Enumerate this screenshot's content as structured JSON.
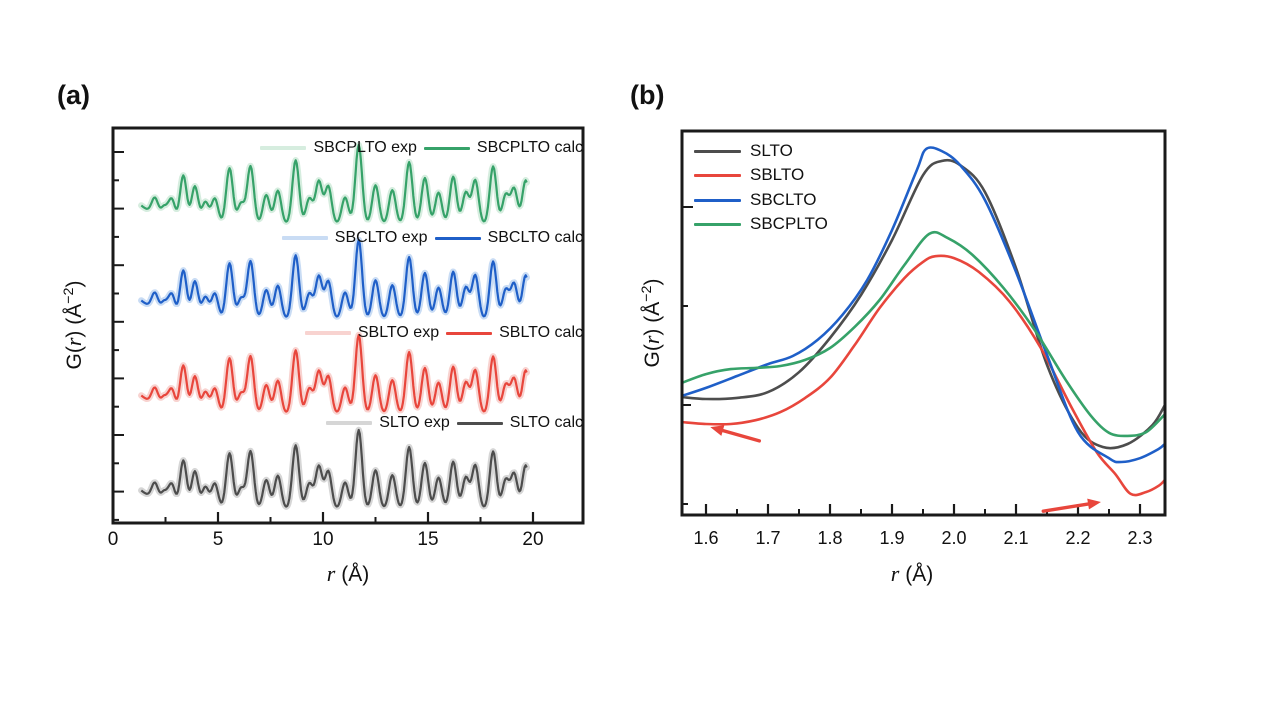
{
  "figure_bg": "#ffffff",
  "axis_color": "#1a1a1a",
  "panel_a": {
    "tag": "(a)",
    "x_tick_labels": [
      "0",
      "5",
      "10",
      "15",
      "20"
    ],
    "xlabel": {
      "italic": "r",
      "rest": " (Å)"
    },
    "ylabel": {
      "p1": "G(",
      "italic": "r",
      "p2": ") (Å",
      "sup": "−2",
      "p3": ")"
    },
    "legend_rows": [
      {
        "exp_label": "SBCPLTO exp",
        "calc_label": "SBCPLTO calc",
        "color": "#36a269",
        "pale": "#d6eddf"
      },
      {
        "exp_label": "SBCLTO exp",
        "calc_label": "SBCLTO calc",
        "color": "#1f5fc8",
        "pale": "#c9dcf4"
      },
      {
        "exp_label": "SBLTO exp",
        "calc_label": "SBLTO calc",
        "color": "#e8463c",
        "pale": "#f8d3d0"
      },
      {
        "exp_label": "SLTO exp",
        "calc_label": "SLTO calc",
        "color": "#4d4d4d",
        "pale": "#d6d6d6"
      }
    ]
  },
  "panel_b": {
    "tag": "(b)",
    "x_tick_labels": [
      "1.6",
      "1.7",
      "1.8",
      "1.9",
      "2.0",
      "2.1",
      "2.2",
      "2.3"
    ],
    "xlabel": {
      "italic": "r",
      "rest": " (Å)"
    },
    "ylabel": {
      "p1": "G(",
      "italic": "r",
      "p2": ") (Å",
      "sup": "−2",
      "p3": ")"
    },
    "legend": [
      {
        "label": "SLTO",
        "color": "#4d4d4d"
      },
      {
        "label": "SBLTO",
        "color": "#e8463c"
      },
      {
        "label": "SBCLTO",
        "color": "#1f5fc8"
      },
      {
        "label": "SBCPLTO",
        "color": "#36a269"
      }
    ]
  },
  "chart_data": [
    {
      "type": "line",
      "panel": "a",
      "title": "",
      "xlabel": "r (Å)",
      "ylabel": "G(r) (Å⁻²)",
      "xlim": [
        0,
        22.4
      ],
      "x_ticks": [
        0,
        5,
        10,
        15,
        20
      ],
      "x_minor_ticks": [
        2.5,
        7.5,
        12.5,
        17.5
      ],
      "grid": false,
      "legend_position": "inline-above-each-curve",
      "r_range": [
        1.35,
        19.7
      ],
      "peak_sigma": 0.16,
      "valley_depth": 0.35,
      "peaks": [
        [
          2.0,
          0.3
        ],
        [
          2.45,
          0.26
        ],
        [
          2.8,
          0.4
        ],
        [
          3.35,
          0.8
        ],
        [
          3.9,
          0.62
        ],
        [
          4.4,
          0.36
        ],
        [
          4.85,
          0.42
        ],
        [
          5.55,
          0.92
        ],
        [
          6.1,
          0.34
        ],
        [
          6.55,
          0.95
        ],
        [
          7.3,
          0.48
        ],
        [
          7.85,
          0.55
        ],
        [
          8.7,
          1.05
        ],
        [
          9.35,
          0.42
        ],
        [
          9.8,
          0.7
        ],
        [
          10.25,
          0.62
        ],
        [
          11.05,
          0.44
        ],
        [
          11.7,
          1.3
        ],
        [
          12.5,
          0.64
        ],
        [
          13.3,
          0.56
        ],
        [
          14.1,
          1.02
        ],
        [
          14.85,
          0.76
        ],
        [
          15.5,
          0.52
        ],
        [
          16.2,
          0.78
        ],
        [
          16.8,
          0.52
        ],
        [
          17.25,
          0.72
        ],
        [
          18.1,
          0.95
        ],
        [
          18.7,
          0.48
        ],
        [
          19.1,
          0.58
        ],
        [
          19.65,
          0.72
        ]
      ],
      "series": [
        {
          "name": "SBCPLTO",
          "row": 0,
          "color": "#36a269",
          "pale": "#d6eddf"
        },
        {
          "name": "SBCLTO",
          "row": 1,
          "color": "#1f5fc8",
          "pale": "#c9dcf4"
        },
        {
          "name": "SBLTO",
          "row": 2,
          "color": "#e8463c",
          "pale": "#f8d3d0"
        },
        {
          "name": "SLTO",
          "row": 3,
          "color": "#4d4d4d",
          "pale": "#d6d6d6"
        }
      ],
      "note": "Four G(r) curves (exp as pale thick line, calc as solid line) vertically offset; y axis has unlabeled ticks (arbitrary units)."
    },
    {
      "type": "line",
      "panel": "b",
      "title": "",
      "xlabel": "r (Å)",
      "ylabel": "G(r) (Å⁻²)",
      "xlim": [
        1.56,
        2.34
      ],
      "x_ticks": [
        1.6,
        1.7,
        1.8,
        1.9,
        2.0,
        2.1,
        2.2,
        2.3
      ],
      "x_minor_step": 0.05,
      "grid": false,
      "legend_position": "top-left",
      "y_rel_range": [
        0,
        1
      ],
      "series": [
        {
          "name": "SLTO",
          "color": "#4d4d4d",
          "points": [
            [
              1.561,
              0.307
            ],
            [
              1.6,
              0.302
            ],
            [
              1.65,
              0.305
            ],
            [
              1.7,
              0.32
            ],
            [
              1.75,
              0.372
            ],
            [
              1.8,
              0.461
            ],
            [
              1.85,
              0.573
            ],
            [
              1.9,
              0.716
            ],
            [
              1.95,
              0.885
            ],
            [
              1.98,
              0.922
            ],
            [
              2.01,
              0.911
            ],
            [
              2.05,
              0.841
            ],
            [
              2.1,
              0.643
            ],
            [
              2.15,
              0.391
            ],
            [
              2.2,
              0.227
            ],
            [
              2.24,
              0.177
            ],
            [
              2.28,
              0.185
            ],
            [
              2.32,
              0.234
            ],
            [
              2.34,
              0.286
            ]
          ]
        },
        {
          "name": "SBLTO",
          "color": "#e8463c",
          "points": [
            [
              1.561,
              0.242
            ],
            [
              1.6,
              0.237
            ],
            [
              1.64,
              0.237
            ],
            [
              1.68,
              0.247
            ],
            [
              1.72,
              0.268
            ],
            [
              1.76,
              0.305
            ],
            [
              1.8,
              0.357
            ],
            [
              1.84,
              0.443
            ],
            [
              1.88,
              0.539
            ],
            [
              1.92,
              0.617
            ],
            [
              1.95,
              0.659
            ],
            [
              1.97,
              0.674
            ],
            [
              2.0,
              0.669
            ],
            [
              2.04,
              0.633
            ],
            [
              2.09,
              0.555
            ],
            [
              2.14,
              0.435
            ],
            [
              2.19,
              0.279
            ],
            [
              2.23,
              0.164
            ],
            [
              2.26,
              0.107
            ],
            [
              2.285,
              0.055
            ],
            [
              2.31,
              0.06
            ],
            [
              2.33,
              0.076
            ],
            [
              2.34,
              0.091
            ]
          ]
        },
        {
          "name": "SBCLTO",
          "color": "#1f5fc8",
          "points": [
            [
              1.561,
              0.31
            ],
            [
              1.6,
              0.331
            ],
            [
              1.65,
              0.362
            ],
            [
              1.7,
              0.393
            ],
            [
              1.74,
              0.414
            ],
            [
              1.78,
              0.456
            ],
            [
              1.82,
              0.521
            ],
            [
              1.86,
              0.612
            ],
            [
              1.9,
              0.742
            ],
            [
              1.94,
              0.898
            ],
            [
              1.955,
              0.953
            ],
            [
              1.98,
              0.948
            ],
            [
              2.01,
              0.911
            ],
            [
              2.05,
              0.82
            ],
            [
              2.1,
              0.633
            ],
            [
              2.15,
              0.417
            ],
            [
              2.2,
              0.216
            ],
            [
              2.25,
              0.148
            ],
            [
              2.27,
              0.138
            ],
            [
              2.3,
              0.148
            ],
            [
              2.33,
              0.172
            ],
            [
              2.34,
              0.185
            ]
          ]
        },
        {
          "name": "SBCPLTO",
          "color": "#36a269",
          "points": [
            [
              1.561,
              0.344
            ],
            [
              1.6,
              0.367
            ],
            [
              1.64,
              0.38
            ],
            [
              1.68,
              0.383
            ],
            [
              1.72,
              0.388
            ],
            [
              1.76,
              0.404
            ],
            [
              1.8,
              0.435
            ],
            [
              1.84,
              0.49
            ],
            [
              1.88,
              0.56
            ],
            [
              1.92,
              0.651
            ],
            [
              1.96,
              0.732
            ],
            [
              1.99,
              0.721
            ],
            [
              2.03,
              0.677
            ],
            [
              2.08,
              0.591
            ],
            [
              2.13,
              0.482
            ],
            [
              2.18,
              0.352
            ],
            [
              2.22,
              0.26
            ],
            [
              2.25,
              0.214
            ],
            [
              2.28,
              0.206
            ],
            [
              2.31,
              0.216
            ],
            [
              2.34,
              0.262
            ]
          ]
        }
      ],
      "arrows": [
        {
          "from": [
            1.686,
            0.193
          ],
          "to": [
            1.607,
            0.229
          ],
          "color": "#e8463c"
        },
        {
          "from": [
            2.144,
            0.01
          ],
          "to": [
            2.237,
            0.034
          ],
          "color": "#e8463c"
        }
      ],
      "note": "Zoom on the first Ti–O peak; red arrows mark flattening of the SBLTO curve."
    }
  ]
}
